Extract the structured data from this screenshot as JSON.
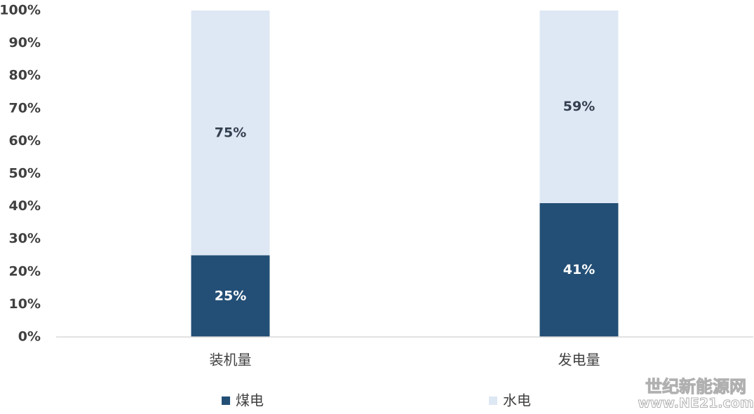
{
  "chart_data": {
    "type": "bar",
    "stacked": true,
    "categories": [
      "装机量",
      "发电量"
    ],
    "series": [
      {
        "name": "煤电",
        "color": "#234f76",
        "label_color": "#ffffff",
        "values": [
          25,
          41
        ],
        "value_labels": [
          "25%",
          "41%"
        ]
      },
      {
        "name": "水电",
        "color": "#dee8f4",
        "label_color": "#333f4f",
        "values": [
          75,
          59
        ],
        "value_labels": [
          "75%",
          "59%"
        ]
      }
    ],
    "ylim": [
      0,
      100
    ],
    "yticks": [
      {
        "value": 0,
        "label": "0%"
      },
      {
        "value": 10,
        "label": "10%"
      },
      {
        "value": 20,
        "label": "20%"
      },
      {
        "value": 30,
        "label": "30%"
      },
      {
        "value": 40,
        "label": "40%"
      },
      {
        "value": 50,
        "label": "50%"
      },
      {
        "value": 60,
        "label": "60%"
      },
      {
        "value": 70,
        "label": "70%"
      },
      {
        "value": 80,
        "label": "80%"
      },
      {
        "value": 90,
        "label": "90%"
      },
      {
        "value": 100,
        "label": "100%"
      }
    ],
    "grid": false,
    "legend": "bottom",
    "watermark": [
      "世纪新能源网",
      "www.NE21.com"
    ]
  }
}
